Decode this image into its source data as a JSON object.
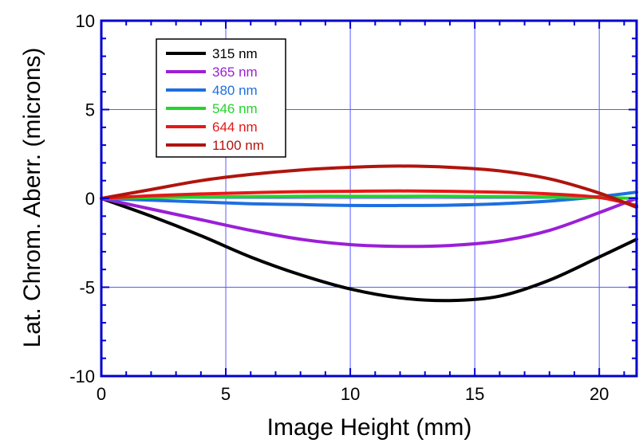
{
  "chart_data": {
    "type": "line",
    "title": "",
    "xlabel": "Image Height (mm)",
    "ylabel": "Lat. Chrom. Aberr. (microns)",
    "xlim": [
      0,
      21.5
    ],
    "ylim": [
      -10,
      10
    ],
    "x_ticks": [
      0,
      5,
      10,
      15,
      20
    ],
    "y_ticks": [
      -10,
      -5,
      0,
      5,
      10
    ],
    "x_tick_labels": [
      "0",
      "5",
      "10",
      "15",
      "20"
    ],
    "y_tick_labels": [
      "-10",
      "-5",
      "0",
      "5",
      "10"
    ],
    "grid": true,
    "legend_position": "top-left",
    "x": [
      0,
      2,
      4,
      6,
      8,
      10,
      12,
      14,
      16,
      18,
      20,
      21.5
    ],
    "series": [
      {
        "name": "315 nm",
        "color": "#000000",
        "values": [
          0,
          -1.0,
          -2.1,
          -3.3,
          -4.3,
          -5.1,
          -5.6,
          -5.75,
          -5.5,
          -4.6,
          -3.3,
          -2.3
        ]
      },
      {
        "name": "365 nm",
        "color": "#9b1fd6",
        "values": [
          0,
          -0.6,
          -1.2,
          -1.8,
          -2.3,
          -2.6,
          -2.7,
          -2.65,
          -2.4,
          -1.8,
          -0.8,
          0.0
        ]
      },
      {
        "name": "480 nm",
        "color": "#1e6fe0",
        "values": [
          0,
          -0.1,
          -0.2,
          -0.3,
          -0.35,
          -0.4,
          -0.4,
          -0.38,
          -0.3,
          -0.15,
          0.1,
          0.35
        ]
      },
      {
        "name": "546 nm",
        "color": "#22d42a",
        "values": [
          0,
          0.05,
          0.08,
          0.1,
          0.12,
          0.12,
          0.12,
          0.12,
          0.1,
          0.08,
          0.05,
          0.0
        ]
      },
      {
        "name": "644 nm",
        "color": "#e51919",
        "values": [
          0,
          0.15,
          0.25,
          0.32,
          0.38,
          0.4,
          0.42,
          0.4,
          0.35,
          0.25,
          0.05,
          -0.4
        ]
      },
      {
        "name": "1100 nm",
        "color": "#b0140e",
        "values": [
          0,
          0.5,
          1.0,
          1.35,
          1.6,
          1.75,
          1.82,
          1.75,
          1.55,
          1.1,
          0.3,
          -0.5
        ]
      }
    ]
  },
  "colors": {
    "frame": "#0000cc",
    "grid": "#5a5aff"
  }
}
